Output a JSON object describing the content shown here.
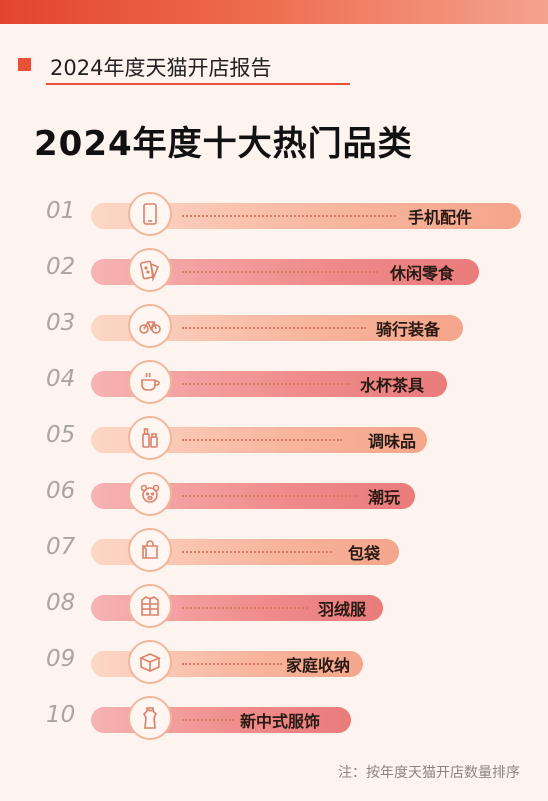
{
  "header": {
    "section_title": "2024年度天猫开店报告",
    "main_title": "2024年度十大热门品类"
  },
  "categories": [
    {
      "rank": "01",
      "label": "手机配件",
      "icon": "phone-icon"
    },
    {
      "rank": "02",
      "label": "休闲零食",
      "icon": "snack-icon"
    },
    {
      "rank": "03",
      "label": "骑行装备",
      "icon": "bicycle-icon"
    },
    {
      "rank": "04",
      "label": "水杯茶具",
      "icon": "teacup-icon"
    },
    {
      "rank": "05",
      "label": "调味品",
      "icon": "condiment-icon"
    },
    {
      "rank": "06",
      "label": "潮玩",
      "icon": "bear-icon"
    },
    {
      "rank": "07",
      "label": "包袋",
      "icon": "bag-icon"
    },
    {
      "rank": "08",
      "label": "羽绒服",
      "icon": "down-jacket-icon"
    },
    {
      "rank": "09",
      "label": "家庭收纳",
      "icon": "storage-box-icon"
    },
    {
      "rank": "10",
      "label": "新中式服饰",
      "icon": "qipao-icon"
    }
  ],
  "footnote": "注：按年度天猫开店数量排序",
  "colors": {
    "accent": "#e8503a",
    "bar_light": "#f8b49d",
    "bar_pink": "#ef8b8b",
    "background": "#fdf3ef"
  }
}
